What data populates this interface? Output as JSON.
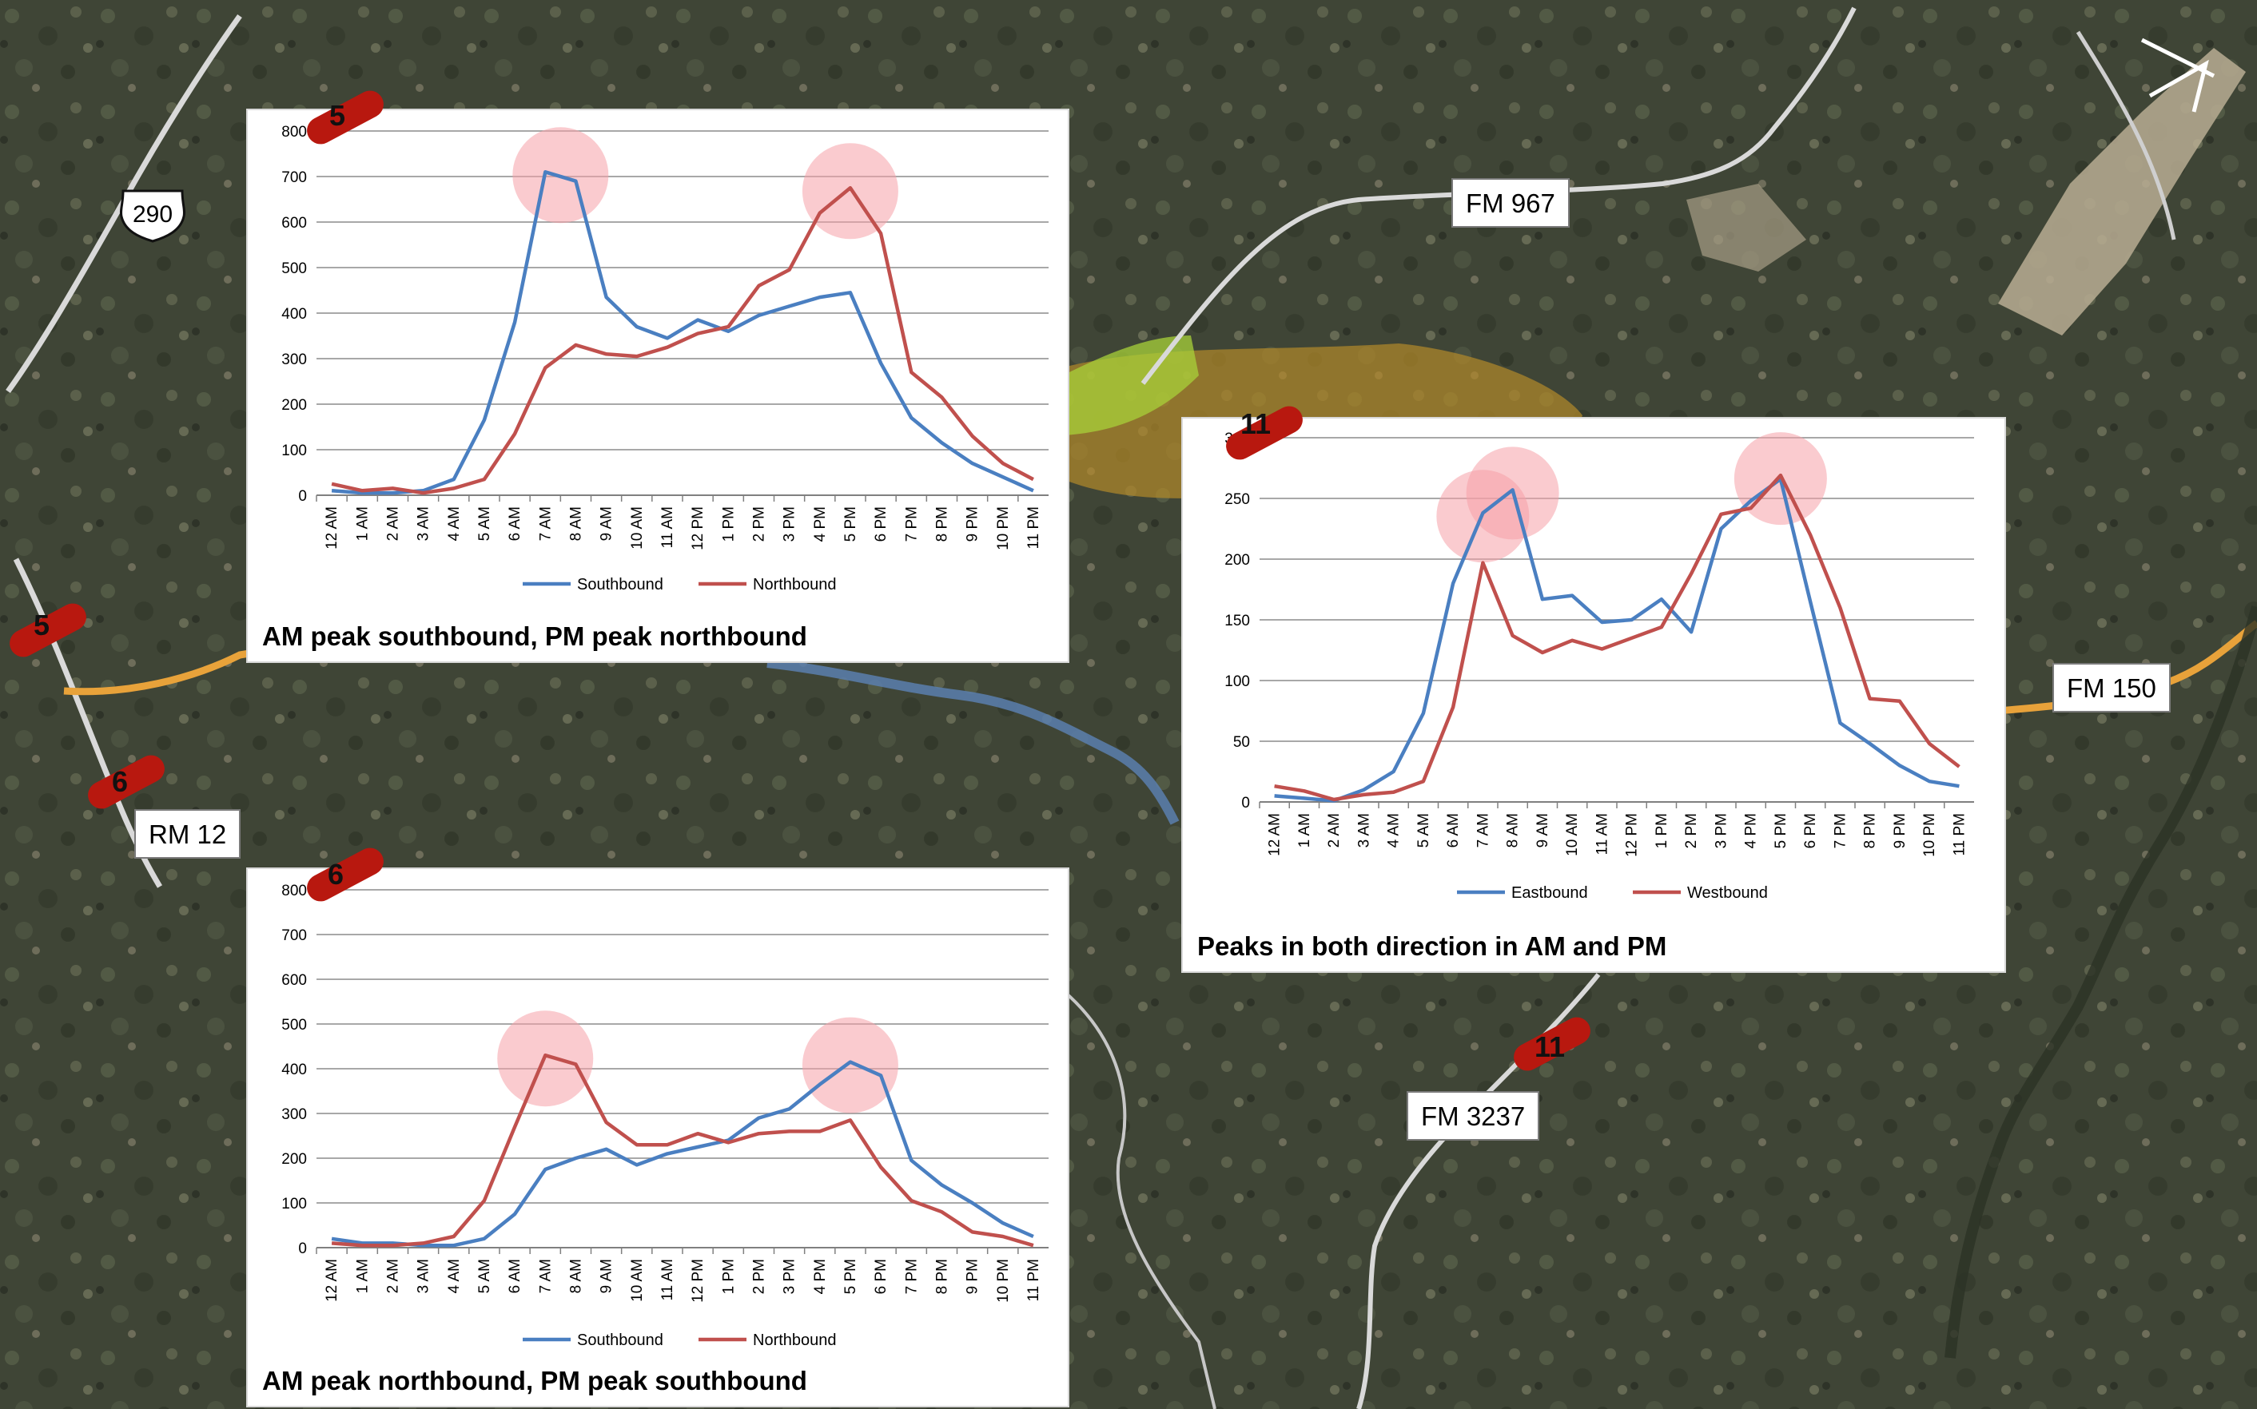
{
  "map": {
    "road_labels": {
      "fm967": "FM 967",
      "fm150": "FM 150",
      "rm12": "RM 12",
      "fm3237": "FM 3237",
      "us290": "290"
    },
    "site_markers": {
      "site5_map": "5",
      "site6_map": "6",
      "site11_map": "11",
      "site5_chart": "5",
      "site6_chart": "6",
      "site11_chart": "11"
    },
    "colors": {
      "terrain": "#3f4536",
      "road_white": "#d9d9d9",
      "road_orange": "#e8a23a",
      "river_blue": "#5a7fae",
      "marker_red": "#b8180f",
      "peak_highlight": "#f5a0a8"
    }
  },
  "chart_data": [
    {
      "type": "line",
      "site": "5",
      "title": "AM peak southbound, PM peak northbound",
      "categories": [
        "12 AM",
        "1 AM",
        "2 AM",
        "3 AM",
        "4 AM",
        "5 AM",
        "6 AM",
        "7 AM",
        "8 AM",
        "9 AM",
        "10 AM",
        "11 AM",
        "12 PM",
        "1 PM",
        "2 PM",
        "3 PM",
        "4 PM",
        "5 PM",
        "6 PM",
        "7 PM",
        "8 PM",
        "9 PM",
        "10 PM",
        "11 PM"
      ],
      "ylim": [
        0,
        800
      ],
      "yticks": [
        0,
        100,
        200,
        300,
        400,
        500,
        600,
        700,
        800
      ],
      "series": [
        {
          "name": "Southbound",
          "color": "#4a7fc1",
          "values": [
            10,
            5,
            5,
            10,
            35,
            165,
            380,
            710,
            690,
            435,
            370,
            345,
            385,
            360,
            395,
            415,
            435,
            445,
            290,
            170,
            115,
            70,
            40,
            10
          ]
        },
        {
          "name": "Northbound",
          "color": "#c0504d",
          "values": [
            25,
            10,
            15,
            5,
            15,
            35,
            135,
            280,
            330,
            310,
            305,
            325,
            355,
            370,
            460,
            495,
            620,
            675,
            575,
            270,
            215,
            130,
            70,
            35
          ]
        }
      ],
      "peaks": [
        7.5,
        17.0
      ],
      "legend": "bottom"
    },
    {
      "type": "line",
      "site": "6",
      "title": "AM peak northbound, PM peak southbound",
      "categories": [
        "12 AM",
        "1 AM",
        "2 AM",
        "3 AM",
        "4 AM",
        "5 AM",
        "6 AM",
        "7 AM",
        "8 AM",
        "9 AM",
        "10 AM",
        "11 AM",
        "12 PM",
        "1 PM",
        "2 PM",
        "3 PM",
        "4 PM",
        "5 PM",
        "6 PM",
        "7 PM",
        "8 PM",
        "9 PM",
        "10 PM",
        "11 PM"
      ],
      "ylim": [
        0,
        800
      ],
      "yticks": [
        0,
        100,
        200,
        300,
        400,
        500,
        600,
        700,
        800
      ],
      "series": [
        {
          "name": "Southbound",
          "color": "#4a7fc1",
          "values": [
            20,
            10,
            10,
            5,
            5,
            20,
            75,
            175,
            200,
            220,
            185,
            210,
            225,
            240,
            290,
            310,
            365,
            415,
            385,
            195,
            140,
            100,
            55,
            25
          ]
        },
        {
          "name": "Northbound",
          "color": "#c0504d",
          "values": [
            10,
            5,
            5,
            10,
            25,
            105,
            270,
            430,
            410,
            280,
            230,
            230,
            255,
            235,
            255,
            260,
            260,
            285,
            180,
            105,
            80,
            35,
            25,
            5
          ]
        }
      ],
      "peaks": [
        7.0,
        17.0
      ],
      "legend": "bottom"
    },
    {
      "type": "line",
      "site": "11",
      "title": "Peaks in both direction in AM and PM",
      "categories": [
        "12 AM",
        "1 AM",
        "2 AM",
        "3 AM",
        "4 AM",
        "5 AM",
        "6 AM",
        "7 AM",
        "8 AM",
        "9 AM",
        "10 AM",
        "11 AM",
        "12 PM",
        "1 PM",
        "2 PM",
        "3 PM",
        "4 PM",
        "5 PM",
        "6 PM",
        "7 PM",
        "8 PM",
        "9 PM",
        "10 PM",
        "11 PM"
      ],
      "ylim": [
        0,
        300
      ],
      "yticks": [
        0,
        50,
        100,
        150,
        200,
        250,
        300
      ],
      "series": [
        {
          "name": "Eastbound",
          "color": "#4a7fc1",
          "values": [
            5,
            3,
            1,
            10,
            25,
            73,
            180,
            238,
            257,
            167,
            170,
            148,
            150,
            167,
            140,
            225,
            248,
            266,
            165,
            65,
            48,
            30,
            17,
            13
          ]
        },
        {
          "name": "Westbound",
          "color": "#c0504d",
          "values": [
            13,
            9,
            2,
            6,
            8,
            17,
            78,
            197,
            137,
            123,
            133,
            126,
            135,
            144,
            188,
            237,
            242,
            269,
            220,
            160,
            85,
            83,
            48,
            29
          ]
        }
      ],
      "peaks": [
        8.0,
        7.0,
        17.0
      ],
      "legend": "bottom"
    }
  ]
}
